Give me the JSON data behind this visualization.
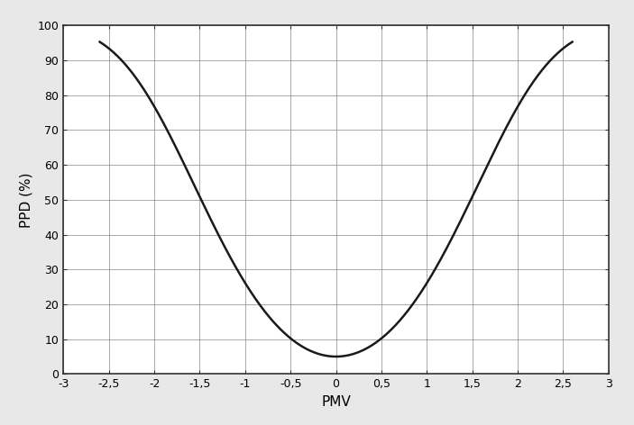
{
  "xlabel": "PMV",
  "ylabel": "PPD (%)",
  "xlim": [
    -3,
    3
  ],
  "ylim": [
    0,
    100
  ],
  "xticks": [
    -3,
    -2.5,
    -2,
    -1.5,
    -1,
    -0.5,
    0,
    0.5,
    1,
    1.5,
    2,
    2.5,
    3
  ],
  "xticklabels": [
    "-3",
    "-2,5",
    "-2",
    "-1,5",
    "-1",
    "-0,5",
    "0",
    "0,5",
    "1",
    "1,5",
    "2",
    "2,5",
    "3"
  ],
  "yticks": [
    0,
    10,
    20,
    30,
    40,
    50,
    60,
    70,
    80,
    90,
    100
  ],
  "line_color": "#1a1a1a",
  "line_width": 1.8,
  "background_color": "#ffffff",
  "plot_bg_color": "#ffffff",
  "outer_bg_color": "#e8e8e8",
  "border_color": "#333333",
  "grid_color": "#888888",
  "grid_linewidth": 0.5,
  "xlabel_fontsize": 11,
  "ylabel_fontsize": 11,
  "tick_fontsize": 9,
  "spine_linewidth": 1.2
}
